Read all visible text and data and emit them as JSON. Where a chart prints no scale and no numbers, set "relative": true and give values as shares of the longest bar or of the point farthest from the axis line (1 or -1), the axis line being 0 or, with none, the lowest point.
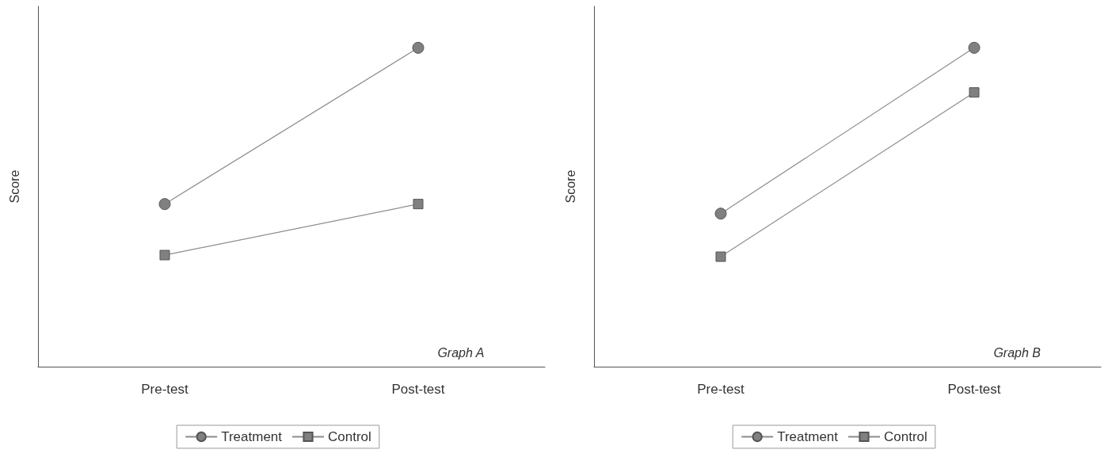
{
  "chart_data": [
    {
      "type": "line",
      "ylabel": "Score",
      "categories": [
        "Pre-test",
        "Post-test"
      ],
      "relative": true,
      "legend": "bottom",
      "grid": false,
      "annotations": [
        "Graph A"
      ],
      "series": [
        {
          "name": "Treatment",
          "color": "#808080",
          "marker": "circle",
          "values": [
            0.51,
            1
          ]
        },
        {
          "name": "Control",
          "color": "#808080",
          "marker": "square",
          "values": [
            0.35,
            0.51
          ]
        }
      ]
    },
    {
      "type": "line",
      "ylabel": "Score",
      "categories": [
        "Pre-test",
        "Post-test"
      ],
      "relative": true,
      "legend": "bottom",
      "grid": false,
      "annotations": [
        "Graph B"
      ],
      "series": [
        {
          "name": "Treatment",
          "color": "#808080",
          "marker": "circle",
          "values": [
            0.48,
            1
          ]
        },
        {
          "name": "Control",
          "color": "#808080",
          "marker": "square",
          "values": [
            0.345,
            0.86
          ]
        }
      ]
    }
  ]
}
